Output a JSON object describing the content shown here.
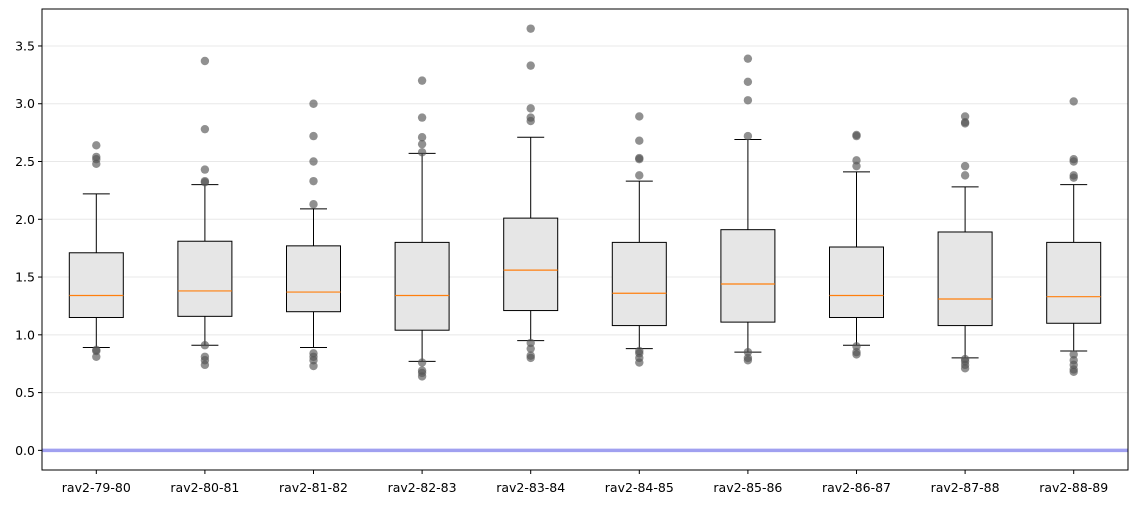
{
  "chart_data": {
    "type": "box",
    "title": "",
    "xlabel": "",
    "ylabel": "",
    "ylim": [
      -0.17,
      3.82
    ],
    "yticks": [
      "0.0",
      "0.5",
      "1.0",
      "1.5",
      "2.0",
      "2.5",
      "3.0",
      "3.5"
    ],
    "ytick_values": [
      0.0,
      0.5,
      1.0,
      1.5,
      2.0,
      2.5,
      3.0,
      3.5
    ],
    "grid": "horizontal",
    "reference_line": {
      "y": 0.0,
      "color": "#a0a0f0"
    },
    "colors": {
      "box_fill": "#e6e6e6",
      "median": "#ff7f0e",
      "outlier": "#555555"
    },
    "categories": [
      "rav2-79-80",
      "rav2-80-81",
      "rav2-81-82",
      "rav2-82-83",
      "rav2-83-84",
      "rav2-84-85",
      "rav2-85-86",
      "rav2-86-87",
      "rav2-87-88",
      "rav2-88-89"
    ],
    "boxes": [
      {
        "whisker_low": 0.89,
        "q1": 1.15,
        "median": 1.34,
        "q3": 1.71,
        "whisker_high": 2.22,
        "outliers": [
          0.81,
          0.86,
          0.87,
          2.48,
          2.52,
          2.54,
          2.64
        ]
      },
      {
        "whisker_low": 0.91,
        "q1": 1.16,
        "median": 1.38,
        "q3": 1.81,
        "whisker_high": 2.3,
        "outliers": [
          0.74,
          0.78,
          0.81,
          0.91,
          2.32,
          2.33,
          2.43,
          2.78,
          3.37
        ]
      },
      {
        "whisker_low": 0.89,
        "q1": 1.2,
        "median": 1.37,
        "q3": 1.77,
        "whisker_high": 2.09,
        "outliers": [
          0.73,
          0.78,
          0.81,
          0.84,
          2.13,
          2.33,
          2.5,
          2.72,
          3.0
        ]
      },
      {
        "whisker_low": 0.77,
        "q1": 1.04,
        "median": 1.34,
        "q3": 1.8,
        "whisker_high": 2.57,
        "outliers": [
          0.64,
          0.67,
          0.69,
          0.76,
          2.58,
          2.65,
          2.71,
          2.88,
          3.2
        ]
      },
      {
        "whisker_low": 0.95,
        "q1": 1.21,
        "median": 1.56,
        "q3": 2.01,
        "whisker_high": 2.71,
        "outliers": [
          0.8,
          0.82,
          0.88,
          0.93,
          2.85,
          2.88,
          2.96,
          3.33,
          3.65
        ]
      },
      {
        "whisker_low": 0.88,
        "q1": 1.08,
        "median": 1.36,
        "q3": 1.8,
        "whisker_high": 2.33,
        "outliers": [
          0.76,
          0.8,
          0.84,
          0.86,
          2.38,
          2.52,
          2.53,
          2.68,
          2.89
        ]
      },
      {
        "whisker_low": 0.85,
        "q1": 1.11,
        "median": 1.44,
        "q3": 1.91,
        "whisker_high": 2.69,
        "outliers": [
          0.78,
          0.8,
          0.85,
          2.72,
          3.03,
          3.19,
          3.39
        ]
      },
      {
        "whisker_low": 0.91,
        "q1": 1.15,
        "median": 1.34,
        "q3": 1.76,
        "whisker_high": 2.41,
        "outliers": [
          0.83,
          0.85,
          0.9,
          2.46,
          2.51,
          2.72,
          2.73
        ]
      },
      {
        "whisker_low": 0.8,
        "q1": 1.08,
        "median": 1.31,
        "q3": 1.89,
        "whisker_high": 2.28,
        "outliers": [
          0.71,
          0.74,
          0.77,
          0.79,
          2.38,
          2.46,
          2.83,
          2.84,
          2.89
        ]
      },
      {
        "whisker_low": 0.86,
        "q1": 1.1,
        "median": 1.33,
        "q3": 1.8,
        "whisker_high": 2.3,
        "outliers": [
          0.68,
          0.7,
          0.74,
          0.78,
          0.83,
          2.36,
          2.38,
          2.5,
          2.52,
          3.02
        ]
      }
    ]
  }
}
